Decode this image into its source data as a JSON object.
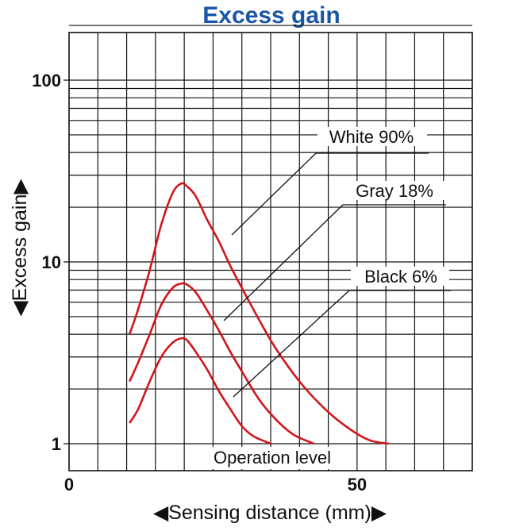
{
  "chart_data": {
    "type": "line",
    "title": "Excess gain",
    "xlabel": "◀Sensing distance (mm)▶",
    "ylabel": "◀Excess gain▶",
    "xlim": [
      0,
      70
    ],
    "ylim": [
      0.7,
      250
    ],
    "y_scale": "log",
    "x_ticks": [
      {
        "value": 0,
        "label": "0"
      },
      {
        "value": 50,
        "label": "50"
      }
    ],
    "y_ticks": [
      {
        "value": 1,
        "label": "1"
      },
      {
        "value": 10,
        "label": "10"
      },
      {
        "value": 100,
        "label": "100"
      }
    ],
    "grid": true,
    "line_color": "#d0161d",
    "annotation": "Operation level",
    "series": [
      {
        "name": "White 90%",
        "x": [
          10.5,
          12,
          14,
          16,
          18,
          19.5,
          20.5,
          22,
          24,
          26,
          28,
          30,
          33,
          36,
          40,
          44,
          48,
          52,
          55.5
        ],
        "y": [
          4.0,
          5.5,
          9.0,
          16.0,
          24.0,
          27.0,
          26.0,
          23.0,
          17.0,
          13.0,
          9.5,
          7.2,
          4.8,
          3.3,
          2.2,
          1.6,
          1.25,
          1.05,
          1.0
        ]
      },
      {
        "name": "Gray 18%",
        "x": [
          10.5,
          12,
          14,
          16,
          18,
          19.5,
          20.5,
          22,
          24,
          26,
          28,
          30,
          33,
          36,
          39,
          42.5
        ],
        "y": [
          2.2,
          2.8,
          4.0,
          5.8,
          7.2,
          7.6,
          7.5,
          6.8,
          5.4,
          4.2,
          3.2,
          2.5,
          1.75,
          1.35,
          1.12,
          1.0
        ]
      },
      {
        "name": "Black 6%",
        "x": [
          10.5,
          12,
          14,
          16,
          18,
          19.5,
          20.5,
          22,
          24,
          26,
          28,
          30,
          32,
          35
        ],
        "y": [
          1.3,
          1.55,
          2.2,
          3.0,
          3.6,
          3.8,
          3.7,
          3.2,
          2.55,
          1.95,
          1.55,
          1.25,
          1.1,
          1.0
        ]
      }
    ]
  }
}
